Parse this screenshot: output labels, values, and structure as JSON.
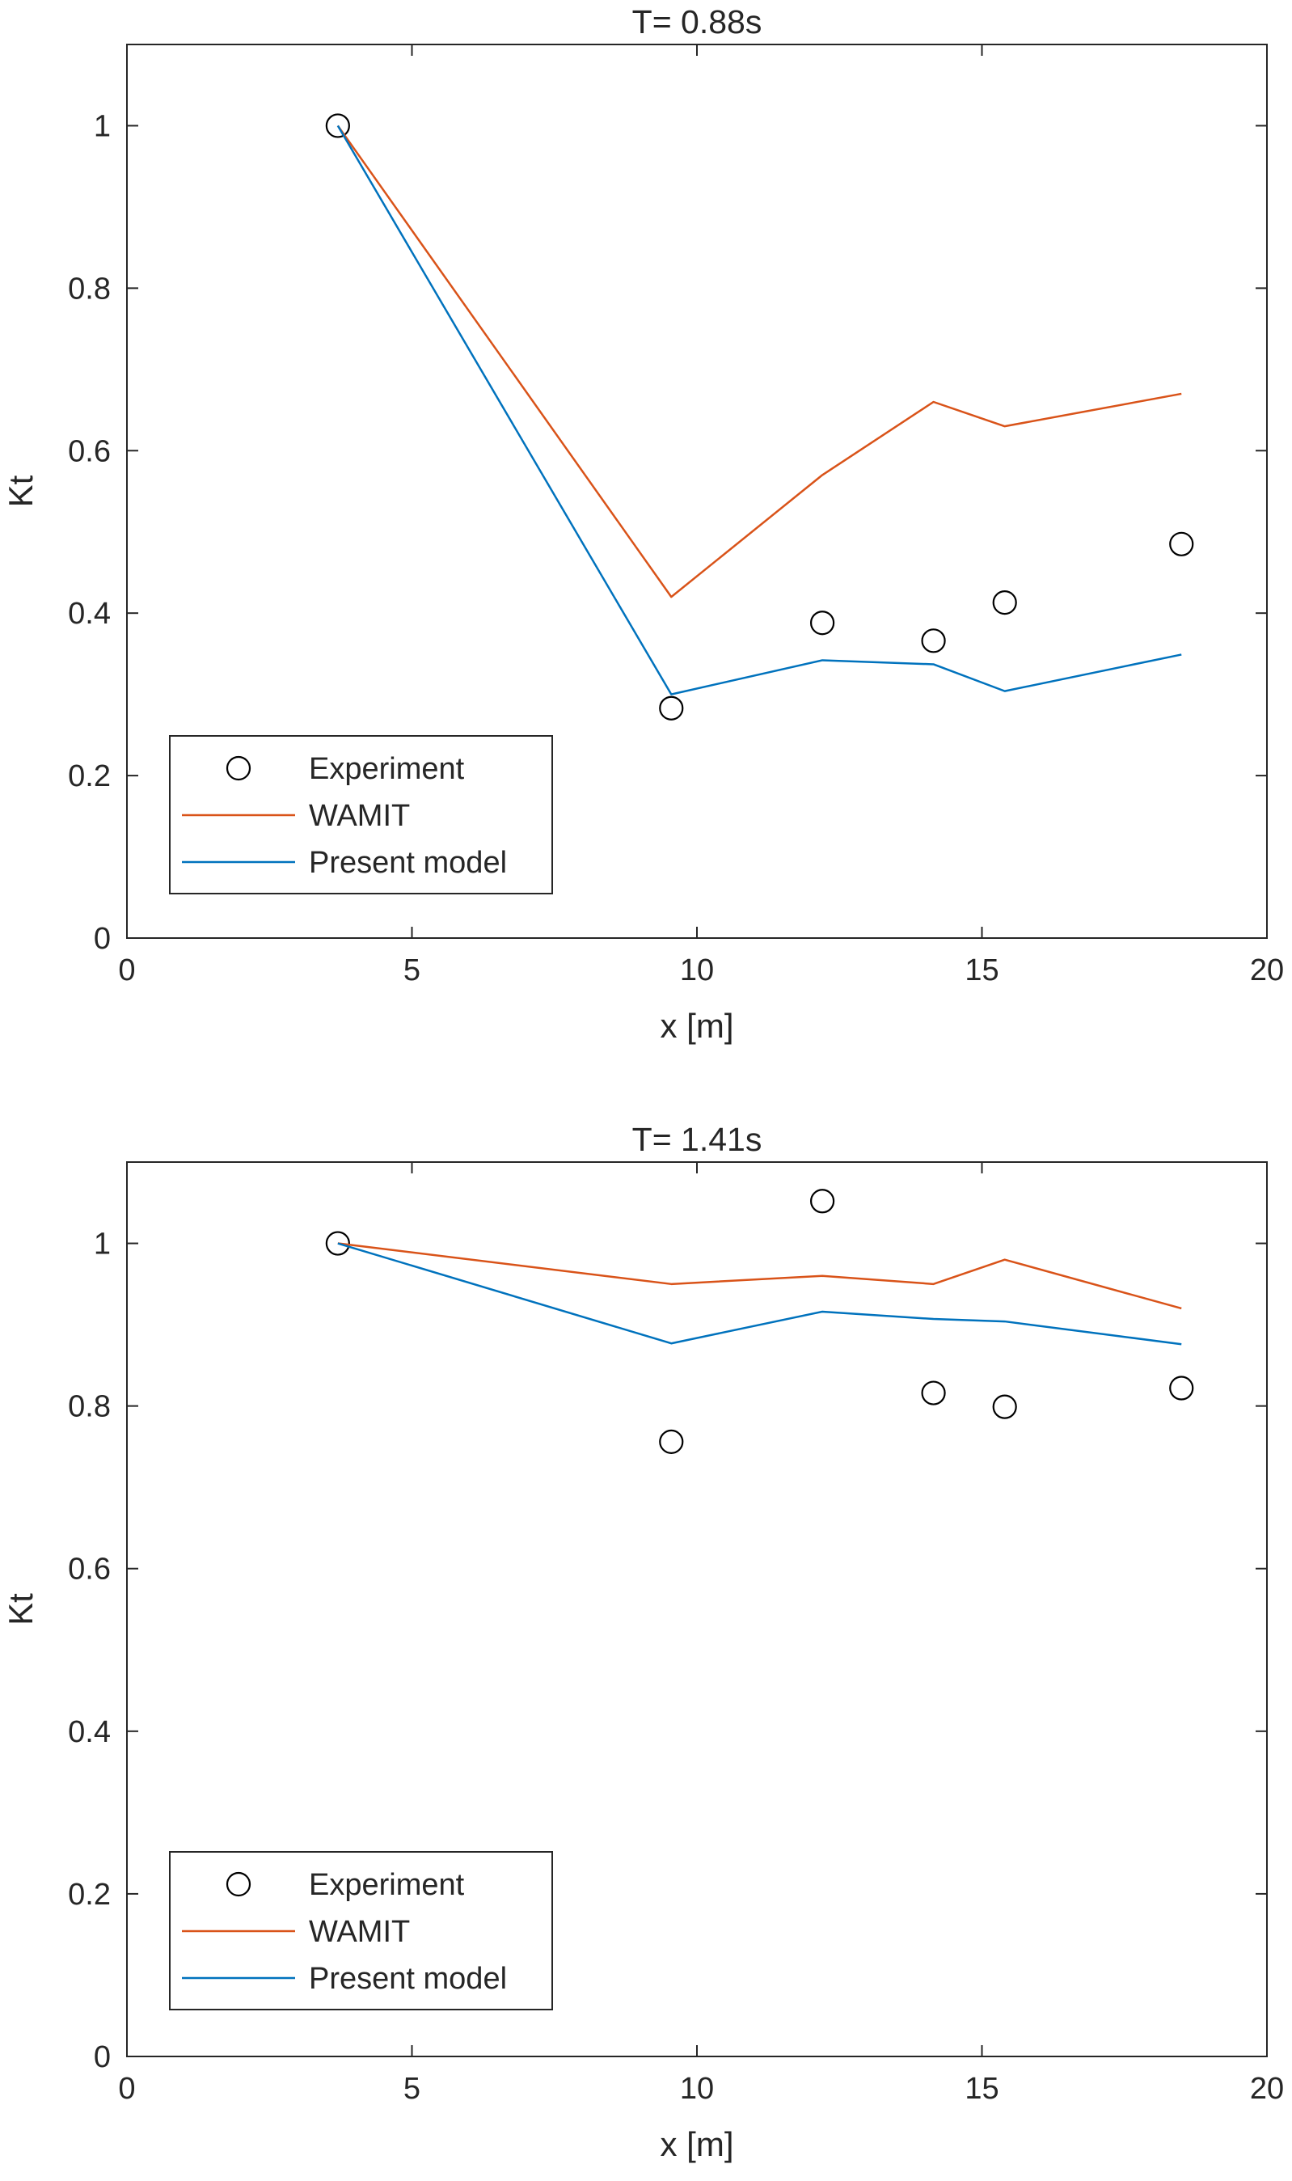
{
  "chart_data": [
    {
      "type": "line",
      "title": "T= 0.88s",
      "xlabel": "x [m]",
      "ylabel": "Kt",
      "xlim": [
        0,
        20
      ],
      "ylim": [
        0,
        1.1
      ],
      "xticks": [
        0,
        5,
        10,
        15,
        20
      ],
      "yticks": [
        0,
        0.2,
        0.4,
        0.6,
        0.8,
        1
      ],
      "xtick_labels": [
        "0",
        "5",
        "10",
        "15",
        "20"
      ],
      "ytick_labels": [
        "0",
        "0.2",
        "0.4",
        "0.6",
        "0.8",
        "1"
      ],
      "grid": false,
      "legend_position": "bottom-left",
      "series": [
        {
          "name": "Experiment",
          "kind": "scatter",
          "marker": "open-circle",
          "color": "#000000",
          "x": [
            3.7,
            9.55,
            12.2,
            14.15,
            15.4,
            18.5
          ],
          "y": [
            1.0,
            0.283,
            0.388,
            0.366,
            0.413,
            0.485
          ]
        },
        {
          "name": "WAMIT",
          "kind": "line",
          "color": "#D95319",
          "x": [
            3.7,
            9.55,
            12.2,
            14.15,
            15.4,
            18.5
          ],
          "y": [
            1.0,
            0.42,
            0.57,
            0.66,
            0.63,
            0.67
          ]
        },
        {
          "name": "Present model",
          "kind": "line",
          "color": "#0072BD",
          "x": [
            3.7,
            9.55,
            12.2,
            14.15,
            15.4,
            18.5
          ],
          "y": [
            1.0,
            0.3,
            0.342,
            0.337,
            0.304,
            0.349
          ]
        }
      ]
    },
    {
      "type": "line",
      "title": "T= 1.41s",
      "xlabel": "x [m]",
      "ylabel": "Kt",
      "xlim": [
        0,
        20
      ],
      "ylim": [
        0,
        1.1
      ],
      "xticks": [
        0,
        5,
        10,
        15,
        20
      ],
      "yticks": [
        0,
        0.2,
        0.4,
        0.6,
        0.8,
        1
      ],
      "xtick_labels": [
        "0",
        "5",
        "10",
        "15",
        "20"
      ],
      "ytick_labels": [
        "0",
        "0.2",
        "0.4",
        "0.6",
        "0.8",
        "1"
      ],
      "grid": false,
      "legend_position": "bottom-left",
      "series": [
        {
          "name": "Experiment",
          "kind": "scatter",
          "marker": "open-circle",
          "color": "#000000",
          "x": [
            3.7,
            9.55,
            12.2,
            14.15,
            15.4,
            18.5
          ],
          "y": [
            1.0,
            0.756,
            1.052,
            0.816,
            0.799,
            0.822
          ]
        },
        {
          "name": "WAMIT",
          "kind": "line",
          "color": "#D95319",
          "x": [
            3.7,
            9.55,
            12.2,
            14.15,
            15.4,
            18.5
          ],
          "y": [
            1.0,
            0.95,
            0.96,
            0.95,
            0.98,
            0.92
          ]
        },
        {
          "name": "Present model",
          "kind": "line",
          "color": "#0072BD",
          "x": [
            3.7,
            9.55,
            12.2,
            14.15,
            15.4,
            18.5
          ],
          "y": [
            1.0,
            0.877,
            0.916,
            0.907,
            0.904,
            0.876
          ]
        }
      ]
    }
  ]
}
